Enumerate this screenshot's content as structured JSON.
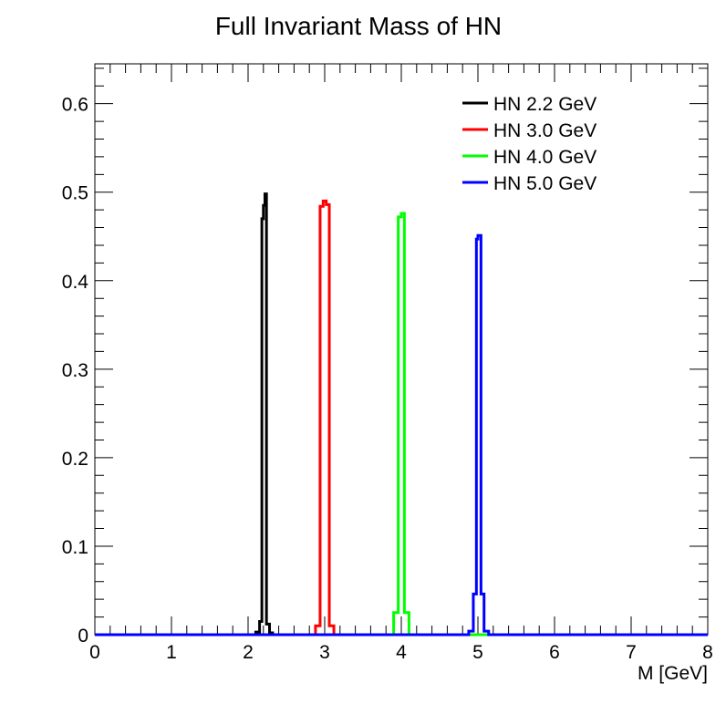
{
  "chart_data": {
    "type": "line",
    "title": "Full Invariant Mass of HN",
    "xlabel": "M [GeV]",
    "ylabel": "",
    "xlim": [
      0,
      8
    ],
    "ylim": [
      0,
      0.645
    ],
    "x_ticks": [
      "0",
      "1",
      "2",
      "3",
      "4",
      "5",
      "6",
      "7",
      "8"
    ],
    "y_ticks": [
      "0",
      "0.1",
      "0.2",
      "0.3",
      "0.4",
      "0.5",
      "0.6"
    ],
    "grid": false,
    "legend_position": "top-right",
    "series": [
      {
        "name": "HN 2.2 GeV",
        "color": "#000000",
        "bins": [
          [
            2.1,
            2.15,
            0.003
          ],
          [
            2.15,
            2.18,
            0.015
          ],
          [
            2.18,
            2.2,
            0.47
          ],
          [
            2.2,
            2.22,
            0.485
          ],
          [
            2.22,
            2.24,
            0.498
          ],
          [
            2.24,
            2.28,
            0.012
          ],
          [
            2.28,
            2.32,
            0.002
          ]
        ]
      },
      {
        "name": "HN 3.0 GeV",
        "color": "#ff0000",
        "bins": [
          [
            2.88,
            2.94,
            0.01
          ],
          [
            2.94,
            2.98,
            0.484
          ],
          [
            2.98,
            3.02,
            0.49
          ],
          [
            3.02,
            3.06,
            0.486
          ],
          [
            3.06,
            3.12,
            0.01
          ]
        ]
      },
      {
        "name": "HN 4.0 GeV",
        "color": "#00ff00",
        "bins": [
          [
            3.9,
            3.96,
            0.025
          ],
          [
            3.96,
            4.0,
            0.472
          ],
          [
            4.0,
            4.04,
            0.476
          ],
          [
            4.04,
            4.1,
            0.025
          ]
        ]
      },
      {
        "name": "HN 5.0 GeV",
        "color": "#0000ff",
        "bins": [
          [
            4.88,
            4.94,
            0.004
          ],
          [
            4.94,
            4.98,
            0.046
          ],
          [
            4.98,
            5.0,
            0.447
          ],
          [
            5.0,
            5.04,
            0.451
          ],
          [
            5.04,
            5.08,
            0.046
          ],
          [
            5.08,
            5.14,
            0.004
          ]
        ]
      }
    ]
  }
}
